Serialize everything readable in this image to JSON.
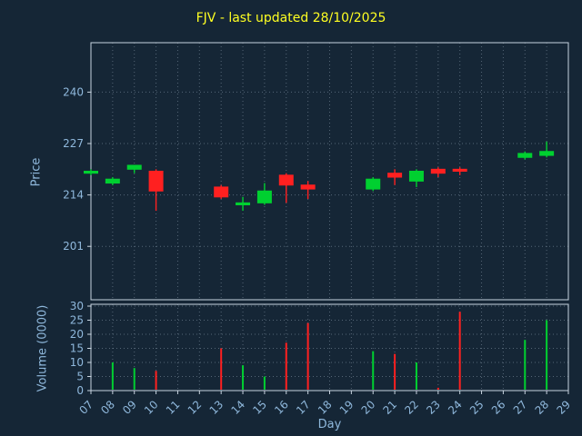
{
  "chart_data": {
    "type": "candlestick",
    "title": "FJV - last updated 28/10/2025",
    "xlabel": "Day",
    "price_ylabel": "Price",
    "volume_ylabel": "Volume (0000)",
    "x_ticks": [
      "07",
      "08",
      "09",
      "10",
      "11",
      "12",
      "13",
      "14",
      "15",
      "16",
      "17",
      "18",
      "19",
      "20",
      "21",
      "22",
      "23",
      "24",
      "25",
      "26",
      "27",
      "28",
      "29"
    ],
    "price_ticks": [
      201,
      214,
      227,
      240
    ],
    "price_ylim": [
      187.5,
      252.5
    ],
    "volume_ticks": [
      0,
      5,
      10,
      15,
      20,
      25,
      30
    ],
    "volume_ylim": [
      0,
      30
    ],
    "grid": true,
    "legend": "none",
    "candles": [
      {
        "day": "07",
        "open": 219.5,
        "high": 220.5,
        "low": 219.0,
        "close": 220.0,
        "volume": 0
      },
      {
        "day": "08",
        "open": 217.0,
        "high": 218.5,
        "low": 216.5,
        "close": 218.0,
        "volume": 10
      },
      {
        "day": "09",
        "open": 220.5,
        "high": 221.5,
        "low": 219.5,
        "close": 221.5,
        "volume": 8
      },
      {
        "day": "10",
        "open": 220.0,
        "high": 220.5,
        "low": 210.0,
        "close": 215.0,
        "volume": 7
      },
      {
        "day": "13",
        "open": 216.0,
        "high": 216.5,
        "low": 213.0,
        "close": 213.5,
        "volume": 15
      },
      {
        "day": "14",
        "open": 211.5,
        "high": 213.5,
        "low": 210.0,
        "close": 212.0,
        "volume": 9
      },
      {
        "day": "15",
        "open": 212.0,
        "high": 217.0,
        "low": 211.5,
        "close": 215.0,
        "volume": 5
      },
      {
        "day": "16",
        "open": 219.0,
        "high": 219.5,
        "low": 212.0,
        "close": 216.5,
        "volume": 17
      },
      {
        "day": "17",
        "open": 216.5,
        "high": 217.5,
        "low": 213.0,
        "close": 215.5,
        "volume": 24
      },
      {
        "day": "20",
        "open": 215.5,
        "high": 218.5,
        "low": 215.0,
        "close": 218.0,
        "volume": 14
      },
      {
        "day": "21",
        "open": 219.5,
        "high": 220.5,
        "low": 216.5,
        "close": 218.5,
        "volume": 13
      },
      {
        "day": "22",
        "open": 217.5,
        "high": 220.5,
        "low": 216.0,
        "close": 220.0,
        "volume": 10
      },
      {
        "day": "23",
        "open": 220.5,
        "high": 221.0,
        "low": 218.5,
        "close": 219.5,
        "volume": 1
      },
      {
        "day": "24",
        "open": 220.5,
        "high": 221.0,
        "low": 219.0,
        "close": 220.0,
        "volume": 28
      },
      {
        "day": "27",
        "open": 223.5,
        "high": 225.0,
        "low": 223.0,
        "close": 224.5,
        "volume": 18
      },
      {
        "day": "28",
        "open": 224.0,
        "high": 227.5,
        "low": 223.5,
        "close": 225.0,
        "volume": 25
      }
    ],
    "colors": {
      "background": "#152636",
      "title": "#ffff22",
      "axis_text": "#8fb8dc",
      "spine": "#c8d4e0",
      "grid": "#8899aa",
      "up": "#00d030",
      "down": "#ff2020"
    }
  }
}
